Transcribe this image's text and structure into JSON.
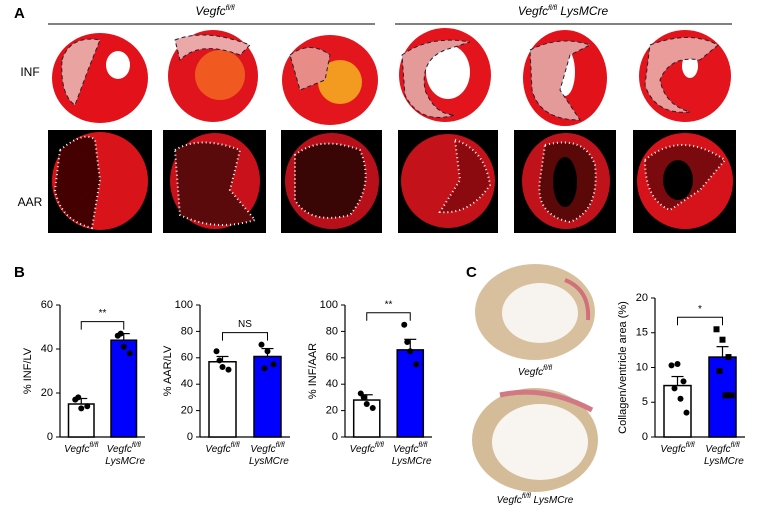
{
  "figure": {
    "panels": [
      "A",
      "B",
      "C"
    ],
    "groups": [
      "Vegfcfl/fl",
      "Vegfcfl/fl LysMCre"
    ],
    "rows": [
      "INF",
      "AAR"
    ],
    "captions": [
      "Vegfcfl/fl",
      "Vegfcfl/fl LysMCre"
    ]
  },
  "chart_data": [
    {
      "type": "bar",
      "ylabel": "% INF/LV",
      "categories": [
        "Vegfcfl/fl",
        "Vegfcfl/fl LysMCre"
      ],
      "values": [
        15,
        44
      ],
      "errors": [
        2.5,
        3
      ],
      "points": [
        [
          17,
          13,
          14,
          18
        ],
        [
          46,
          41,
          38,
          47
        ]
      ],
      "colors": [
        "#ffffff",
        "#0000ff"
      ],
      "markers": [
        "circle",
        "circle"
      ],
      "ylim": [
        0,
        60
      ],
      "yticks": [
        0,
        20,
        40,
        60
      ],
      "significance": "**"
    },
    {
      "type": "bar",
      "ylabel": "% AAR/LV",
      "categories": [
        "Vegfcfl/fl",
        "Vegfcfl/fl LysMCre"
      ],
      "values": [
        57,
        61
      ],
      "errors": [
        4,
        6
      ],
      "points": [
        [
          65,
          53,
          51,
          58
        ],
        [
          70,
          65,
          55,
          52
        ]
      ],
      "colors": [
        "#ffffff",
        "#0000ff"
      ],
      "markers": [
        "circle",
        "circle"
      ],
      "ylim": [
        0,
        100
      ],
      "yticks": [
        0,
        20,
        40,
        60,
        80,
        100
      ],
      "significance": "NS"
    },
    {
      "type": "bar",
      "ylabel": "% INF/AAR",
      "categories": [
        "Vegfcfl/fl",
        "Vegfcfl/fl LysMCre"
      ],
      "values": [
        28,
        66
      ],
      "errors": [
        4,
        8
      ],
      "points": [
        [
          33,
          25,
          22,
          30
        ],
        [
          85,
          65,
          55,
          72
        ]
      ],
      "colors": [
        "#ffffff",
        "#0000ff"
      ],
      "markers": [
        "circle",
        "circle"
      ],
      "ylim": [
        0,
        100
      ],
      "yticks": [
        0,
        20,
        40,
        60,
        80,
        100
      ],
      "significance": "**"
    },
    {
      "type": "bar",
      "ylabel": "Collagen/ventricle area (%)",
      "categories": [
        "Vegfcfl/fl",
        "Vegfcfl/fl LysMCre"
      ],
      "values": [
        7.4,
        11.5
      ],
      "errors": [
        1.3,
        1.5
      ],
      "points": [
        [
          10.3,
          10.5,
          8,
          7,
          5.5,
          3.5
        ],
        [
          15.5,
          14,
          11.5,
          9.5,
          6,
          6
        ]
      ],
      "colors": [
        "#ffffff",
        "#0000ff"
      ],
      "markers": [
        "circle",
        "square"
      ],
      "ylim": [
        0,
        20
      ],
      "yticks": [
        0,
        5,
        10,
        15,
        20
      ],
      "significance": "*"
    }
  ]
}
